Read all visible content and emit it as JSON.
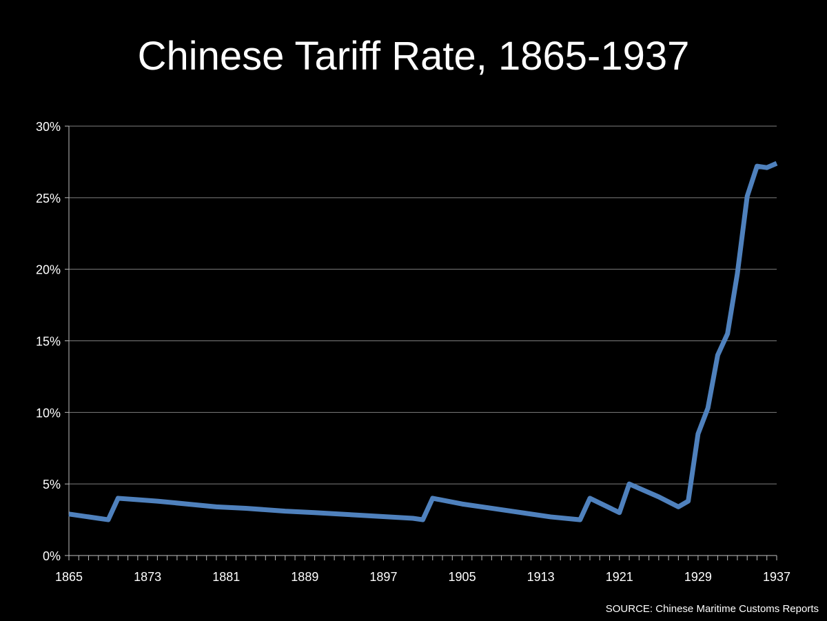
{
  "chart_data": {
    "type": "line",
    "title": "Chinese Tariff Rate, 1865-1937",
    "source": "SOURCE: Chinese Maritime Customs Reports",
    "xlabel": "",
    "ylabel": "",
    "xlim": [
      1865,
      1937
    ],
    "ylim": [
      0,
      0.3
    ],
    "grid": true,
    "line_color": "#4f81bd",
    "x_ticks": [
      "1865",
      "1873",
      "1881",
      "1889",
      "1897",
      "1905",
      "1913",
      "1921",
      "1929",
      "1937"
    ],
    "y_ticks": [
      "0%",
      "5%",
      "10%",
      "15%",
      "20%",
      "25%",
      "30%"
    ],
    "series": [
      {
        "x": [
          1865,
          1868,
          1869,
          1870,
          1872,
          1874,
          1877,
          1880,
          1883,
          1887,
          1890,
          1895,
          1900,
          1901,
          1902,
          1905,
          1908,
          1911,
          1914,
          1917,
          1918,
          1921,
          1922,
          1925,
          1927,
          1928,
          1929,
          1930,
          1931,
          1932,
          1933,
          1934,
          1935,
          1936,
          1937
        ],
        "y": [
          0.029,
          0.026,
          0.025,
          0.04,
          0.039,
          0.038,
          0.036,
          0.034,
          0.033,
          0.031,
          0.03,
          0.028,
          0.026,
          0.025,
          0.04,
          0.036,
          0.033,
          0.03,
          0.027,
          0.025,
          0.04,
          0.03,
          0.05,
          0.041,
          0.034,
          0.038,
          0.085,
          0.103,
          0.14,
          0.155,
          0.197,
          0.251,
          0.272,
          0.271,
          0.274
        ]
      }
    ]
  }
}
